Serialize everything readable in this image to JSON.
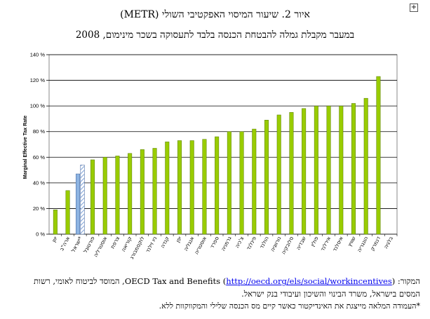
{
  "header": {
    "title": "איור 2. שיעור המיסוי האפקטיבי השולי (METR)",
    "subtitle": "במעבר מקבלת גמלה להבטחת הכנסה בלבד לתעסוקה בשכר מינימום, 2008",
    "expand_icon": "plus-box-icon"
  },
  "chart_data": {
    "type": "bar",
    "ylabel": "Marginal Effective Tax Rate",
    "ylim": [
      0,
      140
    ],
    "yticks": [
      "0 %",
      "20 %",
      "40 %",
      "60 %",
      "80 %",
      "100 %",
      "120 %",
      "140 %"
    ],
    "grid": true,
    "colors": {
      "bar": "#99cc00",
      "israel": "#8db4e2",
      "israel_outline": "#4f6fa3"
    },
    "categories": [
      "יוון",
      "ארה\"ב",
      "ישראל*",
      "פורטוגל",
      "אוסטרליה",
      "צרפת",
      "קוריאה",
      "לוקסמבורג",
      "ניו זילנד",
      "קנדה",
      "יפן",
      "אנגליה",
      "אוסטריה",
      "ספרד",
      "גרמניה",
      "צ'כיה",
      "פינלנד",
      "הולנד",
      "נורווגיה",
      "סלובקיה",
      "שבדיה",
      "פולין",
      "אירלנד",
      "איסלנד",
      "שוויץ",
      "הונגריה",
      "דנמרק",
      "בלגיה"
    ],
    "values": [
      19,
      34,
      47,
      58,
      60,
      61,
      63,
      66,
      67,
      72,
      73,
      73,
      74,
      76,
      80,
      80,
      82,
      89,
      93,
      95,
      98,
      100,
      100,
      100,
      102,
      106,
      123,
      0
    ],
    "israel_extra": 54
  },
  "footer": {
    "source_prefix": "המקור: ",
    "source_name": "OECD Tax and Benefits",
    "source_link": "http://oecd.org/els/social/workincentives",
    "source_suffix": "), המוסד לביטוח לאומי, רשות המסים בישראל, משרד הבינוי והשיכון ועיבודי בנק ישראל.",
    "source_open": " (",
    "note": "*העמודה המלאה מייצגת את האינדיקטור כאשר קיים מס הכנסה שלילי והמקווקוות ללא."
  }
}
